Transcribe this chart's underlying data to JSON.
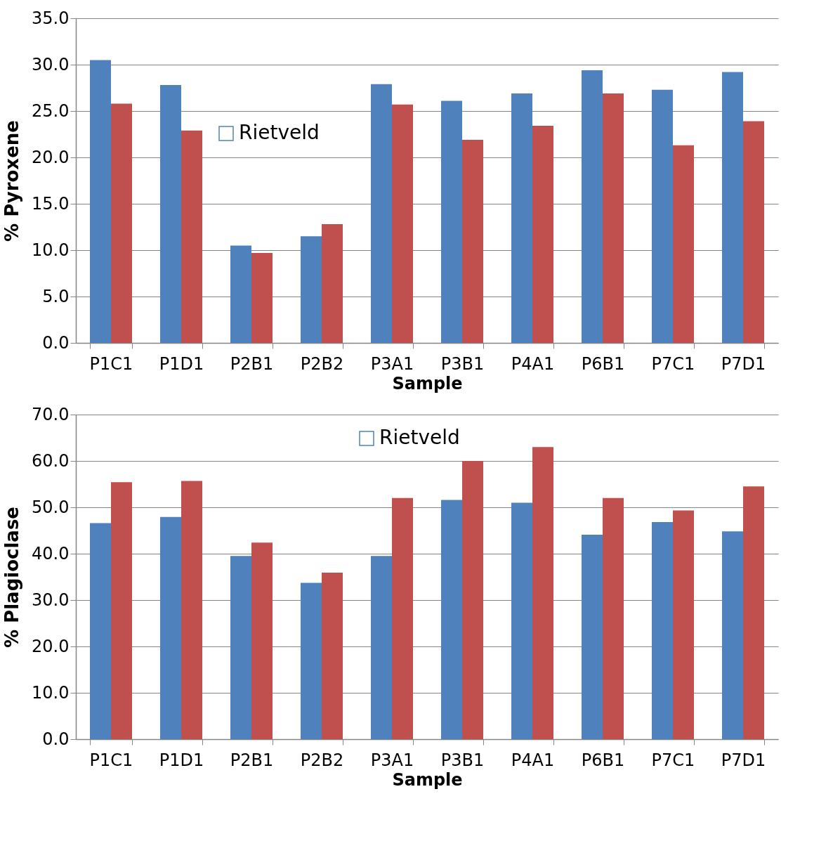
{
  "chart_data": [
    {
      "type": "bar",
      "xlabel": "Sample",
      "ylabel": "% Pyroxene",
      "categories": [
        "P1C1",
        "P1D1",
        "P2B1",
        "P2B2",
        "P3A1",
        "P3B1",
        "P4A1",
        "P6B1",
        "P7C1",
        "P7D1"
      ],
      "series": [
        {
          "name": "Rietveld",
          "color": "#4f81bd",
          "values": [
            30.5,
            27.8,
            10.5,
            11.5,
            27.9,
            26.1,
            26.9,
            29.4,
            27.3,
            29.2
          ]
        },
        {
          "color": "#c0504d",
          "values": [
            25.8,
            22.9,
            9.7,
            12.8,
            25.7,
            21.9,
            23.4,
            26.9,
            21.3,
            23.9
          ]
        }
      ],
      "ylim": [
        0,
        35
      ],
      "yticks": [
        {
          "value": 0,
          "label": "0.0"
        },
        {
          "value": 5,
          "label": "5.0"
        },
        {
          "value": 10,
          "label": "10.0"
        },
        {
          "value": 15,
          "label": "15.0"
        },
        {
          "value": 20,
          "label": "20.0"
        },
        {
          "value": 25,
          "label": "25.0"
        },
        {
          "value": 30,
          "label": "30.0"
        },
        {
          "value": 35,
          "label": "35.0"
        }
      ],
      "grid": "y",
      "legend": "top left"
    },
    {
      "type": "bar",
      "xlabel": "Sample",
      "ylabel": "% Plagioclase",
      "categories": [
        "P1C1",
        "P1D1",
        "P2B1",
        "P2B2",
        "P3A1",
        "P3B1",
        "P4A1",
        "P6B1",
        "P7C1",
        "P7D1"
      ],
      "series": [
        {
          "name": "Rietveld",
          "color": "#4f81bd",
          "values": [
            46.6,
            47.9,
            39.5,
            33.7,
            39.5,
            51.6,
            51.0,
            44.1,
            46.8,
            44.8
          ]
        },
        {
          "color": "#c0504d",
          "values": [
            55.4,
            55.7,
            42.4,
            35.9,
            52.0,
            60.0,
            63.0,
            52.0,
            49.3,
            54.5
          ]
        }
      ],
      "ylim": [
        0,
        70
      ],
      "yticks": [
        {
          "value": 0,
          "label": "0.0"
        },
        {
          "value": 10,
          "label": "10.0"
        },
        {
          "value": 20,
          "label": "20.0"
        },
        {
          "value": 30,
          "label": "30.0"
        },
        {
          "value": 40,
          "label": "40.0"
        },
        {
          "value": 50,
          "label": "50.0"
        },
        {
          "value": 60,
          "label": "60.0"
        },
        {
          "value": 70,
          "label": "70.0"
        }
      ],
      "grid": "y",
      "legend": "top"
    }
  ]
}
